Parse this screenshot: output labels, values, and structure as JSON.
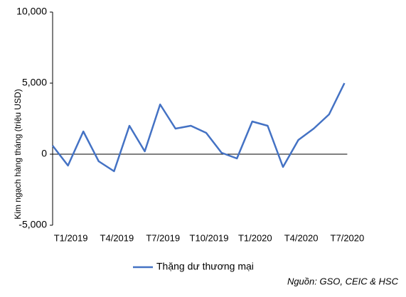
{
  "chart_data": {
    "type": "line",
    "y_label": "Kim ngạch hàng tháng (triệu USD)",
    "categories": [
      null,
      "T1/2019",
      null,
      null,
      "T4/2019",
      null,
      null,
      "T7/2019",
      null,
      null,
      "T10/2019",
      null,
      null,
      "T1/2020",
      null,
      null,
      "T4/2020",
      null,
      null,
      "T7/2020"
    ],
    "series": [
      {
        "name": "Thặng dư thương mại",
        "color": "#4472c4",
        "values": [
          600,
          -800,
          1600,
          -500,
          -1200,
          2000,
          200,
          3500,
          1800,
          2000,
          1500,
          100,
          -300,
          2300,
          2000,
          -900,
          1000,
          1800,
          2800,
          5000
        ]
      }
    ],
    "ylim": [
      -5000,
      10000
    ],
    "yticks": [
      {
        "value": -5000,
        "label": "-5,000"
      },
      0,
      {
        "value": 5000,
        "label": "5,000"
      },
      {
        "value": 10000,
        "label": "10,000"
      }
    ],
    "source": "Nguồn: GSO, CEIC & HSC"
  }
}
